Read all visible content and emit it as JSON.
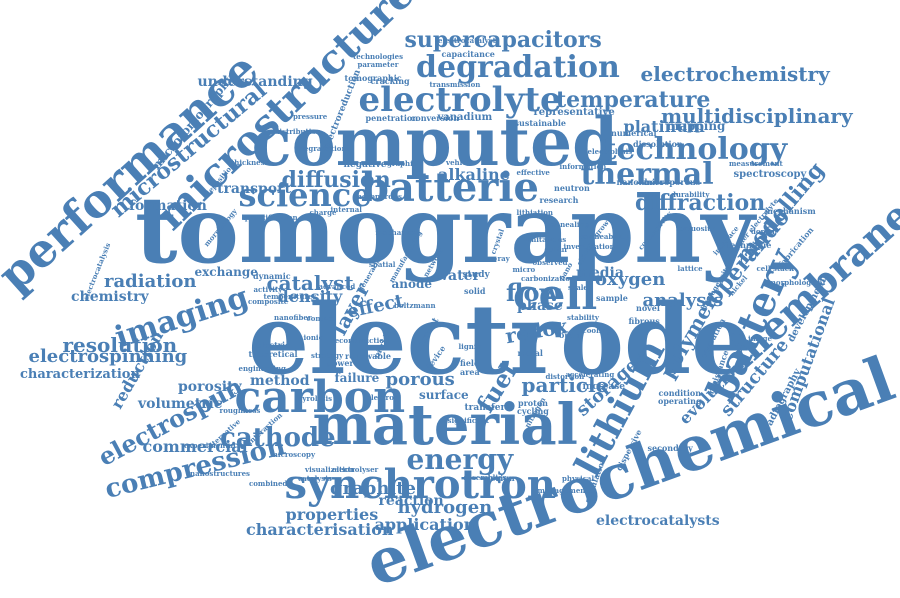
{
  "colors": {
    "word": "#4a7fb5",
    "background": "#ffffff"
  },
  "words": [
    "tomography",
    "electrode",
    "computed",
    "electrochemical",
    "material",
    "performance",
    "microstructure",
    "batterie",
    "synchrotron",
    "electrolyte",
    "carbon",
    "membrane",
    "battery",
    "lithium",
    "degradation",
    "technology",
    "thermal",
    "science",
    "imaging",
    "compression",
    "electrospun",
    "cell",
    "energy",
    "cathode",
    "supercapacitors",
    "temperature",
    "electrochemistry",
    "diffraction",
    "operando",
    "modelling",
    "flow",
    "fuel",
    "catalyst",
    "microstructural",
    "diffusion",
    "multidisciplinary",
    "platinum",
    "radiation",
    "resolution",
    "electrospinning",
    "characterization",
    "characterisation",
    "application",
    "properties",
    "hydrogen",
    "graphite",
    "storage",
    "polymer",
    "particle",
    "analysis",
    "redox",
    "oxygen",
    "media",
    "density",
    "layer",
    "effect",
    "porous",
    "structure",
    "computational",
    "electrocatalysts",
    "commercial",
    "reduction",
    "chemistry",
    "porosity",
    "method",
    "volumetric",
    "understanding",
    "alkaline",
    "water",
    "phase",
    "anode",
    "failure",
    "surface",
    "transport",
    "formation",
    "reaction",
    "microtomography",
    "radiography",
    "development",
    "evolution",
    "exchange",
    "mapping",
    "vanadium",
    "penetration",
    "conversion",
    "capacitance",
    "representative",
    "tomographic",
    "dissolution",
    "nanofibers",
    "microporous",
    "spectroscopy",
    "mechanism",
    "fabrication",
    "technique",
    "electroreduction",
    "electrocatalyst",
    "technologies",
    "parameter",
    "sustainable",
    "numerical",
    "negative",
    "neutron",
    "research",
    "charge",
    "internal",
    "increase",
    "novel",
    "sample",
    "fibrous",
    "transfer",
    "proton",
    "cycling",
    "physical",
    "design",
    "current",
    "nitride",
    "renewable",
    "device",
    "study",
    "solid",
    "metal",
    "open",
    "field",
    "area",
    "power",
    "contact",
    "simulation",
    "secondary",
    "dispersive",
    "operation",
    "condition",
    "operating",
    "electrolyser",
    "catalysis",
    "alternative",
    "interaction",
    "combined",
    "experimental",
    "roughness",
    "assemblies",
    "management",
    "resistance",
    "electrocatalysis",
    "mesoporous",
    "nanostructures",
    "graphitic",
    "vehicle",
    "effective",
    "information",
    "durability",
    "measurement",
    "electrolysis",
    "lithiation",
    "annealing",
    "permeability",
    "connectivity",
    "tortuosity",
    "interface",
    "deposition",
    "thickness",
    "morphology",
    "quantification",
    "visualization",
    "electron",
    "microscopy",
    "pyrolysis",
    "electric",
    "theoretical",
    "temperatures",
    "nanofiber",
    "composite",
    "dynamic",
    "activity",
    "advanced",
    "network",
    "boltzmann",
    "lattice",
    "silicon",
    "carbonization",
    "homogeneity",
    "pressure",
    "cracking",
    "degradations",
    "distribution",
    "transmission",
    "reconstruction",
    "strategy",
    "significant",
    "distortion",
    "accelerating",
    "nitrogen",
    "generation",
    "observed",
    "stability",
    "cooling",
    "studies",
    "lignin",
    "crystal",
    "sulfur",
    "nickel",
    "doped",
    "image",
    "polymer electrolyte",
    "cell stack",
    "morphological",
    "mechanical",
    "limitations",
    "investigation",
    "manufacturing",
    "x-ray",
    "micro",
    "nano",
    "scale",
    "ionic",
    "engineering",
    "spatial",
    "growth",
    "coating",
    "binder",
    "interphase",
    "separator",
    "densification",
    "architecture",
    "tunable"
  ]
}
